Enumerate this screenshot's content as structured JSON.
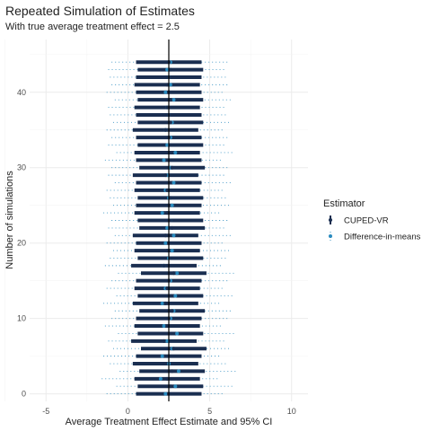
{
  "chart_data": {
    "type": "scatter",
    "title": "Repeated Simulation of Estimates",
    "subtitle": "With true average treatment effect = 2.5",
    "xlabel": "Average Treatment Effect Estimate and 95% CI",
    "ylabel": "Number of simulations",
    "xlim": [
      -6,
      11
    ],
    "ylim": [
      -1,
      47
    ],
    "x_ticks": [
      -5,
      0,
      5,
      10
    ],
    "y_ticks": [
      0,
      10,
      20,
      30,
      40
    ],
    "reference_line_x": 2.5,
    "grid": true,
    "legend_position": "right",
    "legend_title": "Estimator",
    "series": [
      {
        "name": "CUPED-VR",
        "color": "#1a2e50",
        "estimates": [
          2.5,
          2.6,
          2.4,
          2.7,
          2.3,
          2.5,
          2.8,
          2.2,
          2.6,
          2.4,
          2.5,
          2.7,
          2.3,
          2.6,
          2.4,
          2.5,
          2.8,
          2.2,
          2.6,
          2.4,
          2.5,
          2.3,
          2.7,
          2.6,
          2.4,
          2.5,
          2.6,
          2.4,
          2.5,
          2.3,
          2.7,
          2.5,
          2.4,
          2.6,
          2.5,
          2.3,
          2.6,
          2.5,
          2.4,
          2.6,
          2.5,
          2.4,
          2.5,
          2.6,
          2.5
        ],
        "ci_half_width": 2.0
      },
      {
        "name": "Difference-in-means",
        "color": "#2a8bbf",
        "estimates": [
          2.3,
          2.9,
          2.0,
          3.1,
          2.5,
          2.1,
          2.7,
          2.4,
          3.0,
          2.2,
          2.6,
          2.8,
          2.1,
          2.9,
          2.3,
          2.6,
          3.0,
          2.2,
          2.5,
          2.7,
          2.3,
          2.8,
          2.4,
          2.6,
          2.1,
          2.7,
          2.5,
          2.3,
          2.8,
          2.4,
          2.6,
          2.2,
          2.9,
          2.4,
          2.6,
          2.3,
          2.7,
          2.5,
          2.4,
          2.8,
          2.3,
          2.6,
          2.5,
          2.4,
          2.6
        ],
        "ci_half_width": 3.6
      }
    ]
  }
}
